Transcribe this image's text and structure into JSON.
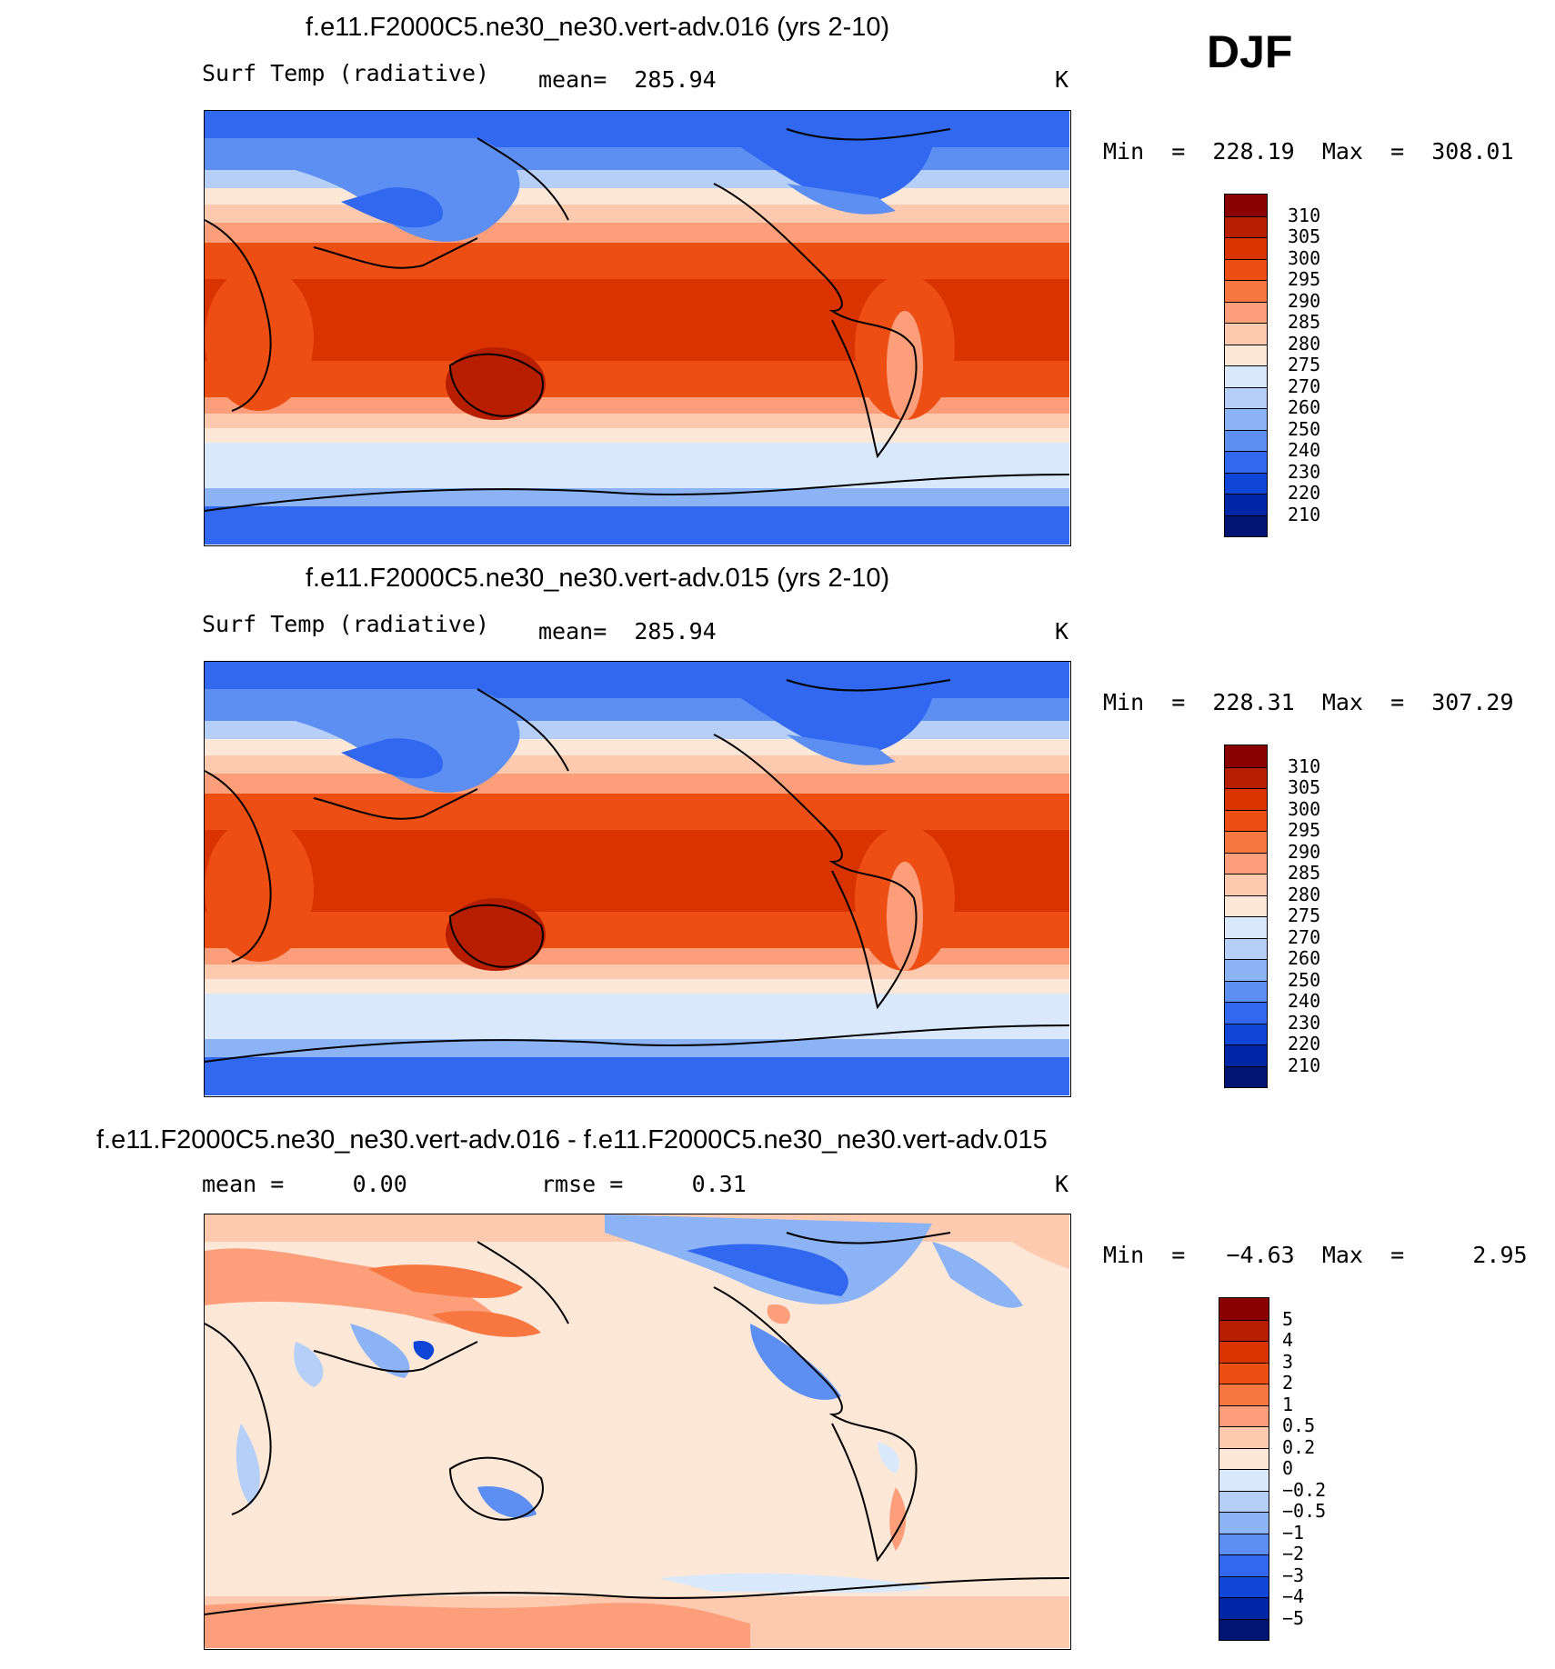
{
  "season": "DJF",
  "panels": [
    {
      "id": "p1",
      "title": "f.e11.F2000C5.ne30_ne30.vert-adv.016 (yrs 2-10)",
      "left_label": "Surf Temp (radiative)",
      "center_label": "mean=  285.94",
      "units": "K",
      "minmax": "Min  =  228.19  Max  =  308.01",
      "colorbar_labels": [
        "310",
        "305",
        "300",
        "295",
        "290",
        "285",
        "280",
        "275",
        "270",
        "260",
        "250",
        "240",
        "230",
        "220",
        "210"
      ],
      "colorbar_colors": [
        "#8b0000",
        "#b71e00",
        "#d93300",
        "#ec4e13",
        "#f87741",
        "#fb9e79",
        "#fdcab0",
        "#fde8d8",
        "#d9e8fb",
        "#b5cff8",
        "#8cb3f6",
        "#5d8ff3",
        "#3168ef",
        "#0f46d8",
        "#0026a8",
        "#001573"
      ]
    },
    {
      "id": "p2",
      "title": "f.e11.F2000C5.ne30_ne30.vert-adv.015 (yrs 2-10)",
      "left_label": "Surf Temp (radiative)",
      "center_label": "mean=  285.94",
      "units": "K",
      "minmax": "Min  =  228.31  Max  =  307.29",
      "colorbar_labels": [
        "310",
        "305",
        "300",
        "295",
        "290",
        "285",
        "280",
        "275",
        "270",
        "260",
        "250",
        "240",
        "230",
        "220",
        "210"
      ],
      "colorbar_colors": [
        "#8b0000",
        "#b71e00",
        "#d93300",
        "#ec4e13",
        "#f87741",
        "#fb9e79",
        "#fdcab0",
        "#fde8d8",
        "#d9e8fb",
        "#b5cff8",
        "#8cb3f6",
        "#5d8ff3",
        "#3168ef",
        "#0f46d8",
        "#0026a8",
        "#001573"
      ]
    },
    {
      "id": "p3",
      "title": "f.e11.F2000C5.ne30_ne30.vert-adv.016 - f.e11.F2000C5.ne30_ne30.vert-adv.015",
      "left_label": "mean =     0.00",
      "center_label": "rmse =     0.31",
      "units": "K",
      "minmax": "Min  =   −4.63  Max  =     2.95",
      "colorbar_labels": [
        "5",
        "4",
        "3",
        "2",
        "1",
        "0.5",
        "0.2",
        "0",
        "−0.2",
        "−0.5",
        "−1",
        "−2",
        "−3",
        "−4",
        "−5"
      ],
      "colorbar_colors": [
        "#8b0000",
        "#b71e00",
        "#d93300",
        "#ec4e13",
        "#f87741",
        "#fb9e79",
        "#fdcab0",
        "#fde8d8",
        "#d9e8fb",
        "#b5cff8",
        "#8cb3f6",
        "#5d8ff3",
        "#3168ef",
        "#0f46d8",
        "#0026a8",
        "#001573"
      ]
    }
  ]
}
